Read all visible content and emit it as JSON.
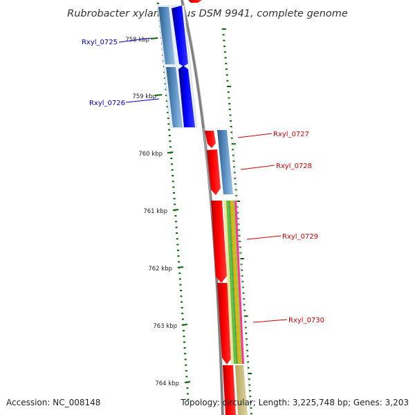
{
  "title": "Rubrobacter xylanophilus DSM 9941, complete genome",
  "accession_text": "Accession: NC_008148",
  "topology_text": "Topology: circular; Length: 3,225,748 bp; Genes: 3,203",
  "scale_ticks": [
    {
      "label": "758 kbp",
      "position_kbp": 758
    },
    {
      "label": "759 kbp",
      "position_kbp": 759
    },
    {
      "label": "760 kbp",
      "position_kbp": 760
    },
    {
      "label": "761 kbp",
      "position_kbp": 761
    },
    {
      "label": "762 kbp",
      "position_kbp": 762
    },
    {
      "label": "763 kbp",
      "position_kbp": 763
    },
    {
      "label": "764 kbp",
      "position_kbp": 764
    }
  ],
  "genes": [
    {
      "id": "Rxyl_0725",
      "strand": "reverse",
      "color": "#0000cc"
    },
    {
      "id": "Rxyl_0726",
      "strand": "reverse",
      "color": "#0000cc"
    },
    {
      "id": "Rxyl_0727",
      "strand": "forward",
      "color": "#cc0000"
    },
    {
      "id": "Rxyl_0728",
      "strand": "forward",
      "color": "#cc0000"
    },
    {
      "id": "Rxyl_0729",
      "strand": "forward",
      "color": "#cc0000"
    },
    {
      "id": "Rxyl_0730",
      "strand": "forward",
      "color": "#cc0000"
    }
  ],
  "colors": {
    "backbone": "#808080",
    "forward_cds": "#ff0000",
    "reverse_cds": "#0000ff",
    "cog_blue": "#4682b4",
    "tick": "#006400",
    "label_reverse": "#0000cc",
    "label_forward": "#cc0000"
  }
}
